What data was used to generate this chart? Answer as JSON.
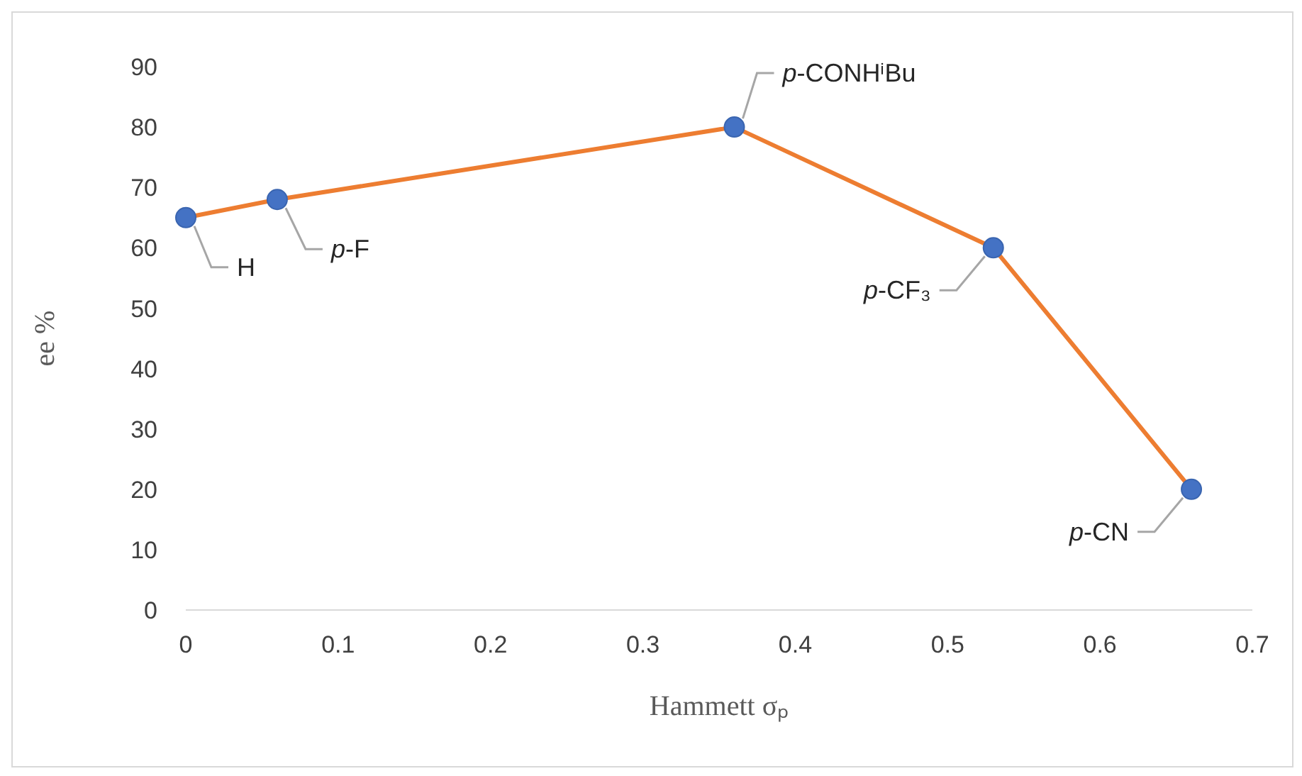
{
  "chart_data": {
    "type": "line",
    "xlabel": "Hammett σₚ",
    "ylabel": "ee %",
    "x": [
      0,
      0.06,
      0.36,
      0.53,
      0.66
    ],
    "series": [
      {
        "color": "#ed7d31",
        "colors": [
          "#4472c4",
          "#4472c4",
          "#4472c4",
          "#4472c4",
          "#4472c4"
        ],
        "values": [
          65,
          68,
          80,
          60,
          20
        ]
      }
    ],
    "marker": "circle",
    "xlim": [
      0,
      0.7
    ],
    "xticks": [
      0,
      0.1,
      0.2,
      0.3,
      0.4,
      0.5,
      0.6,
      0.7
    ],
    "ylim": [
      0,
      90
    ],
    "yticks": [
      0,
      10,
      20,
      30,
      40,
      50,
      60,
      70,
      80,
      90
    ],
    "grid": false,
    "legend": false,
    "annotations": [
      {
        "text": "H",
        "x": 0,
        "y": 65
      },
      {
        "text": "p-F",
        "x": 0.06,
        "y": 68
      },
      {
        "text": "p-CONHⁱBu",
        "x": 0.36,
        "y": 80
      },
      {
        "text": "p-CF₃",
        "x": 0.53,
        "y": 60
      },
      {
        "text": "p-CN",
        "x": 0.66,
        "y": 20
      }
    ]
  }
}
